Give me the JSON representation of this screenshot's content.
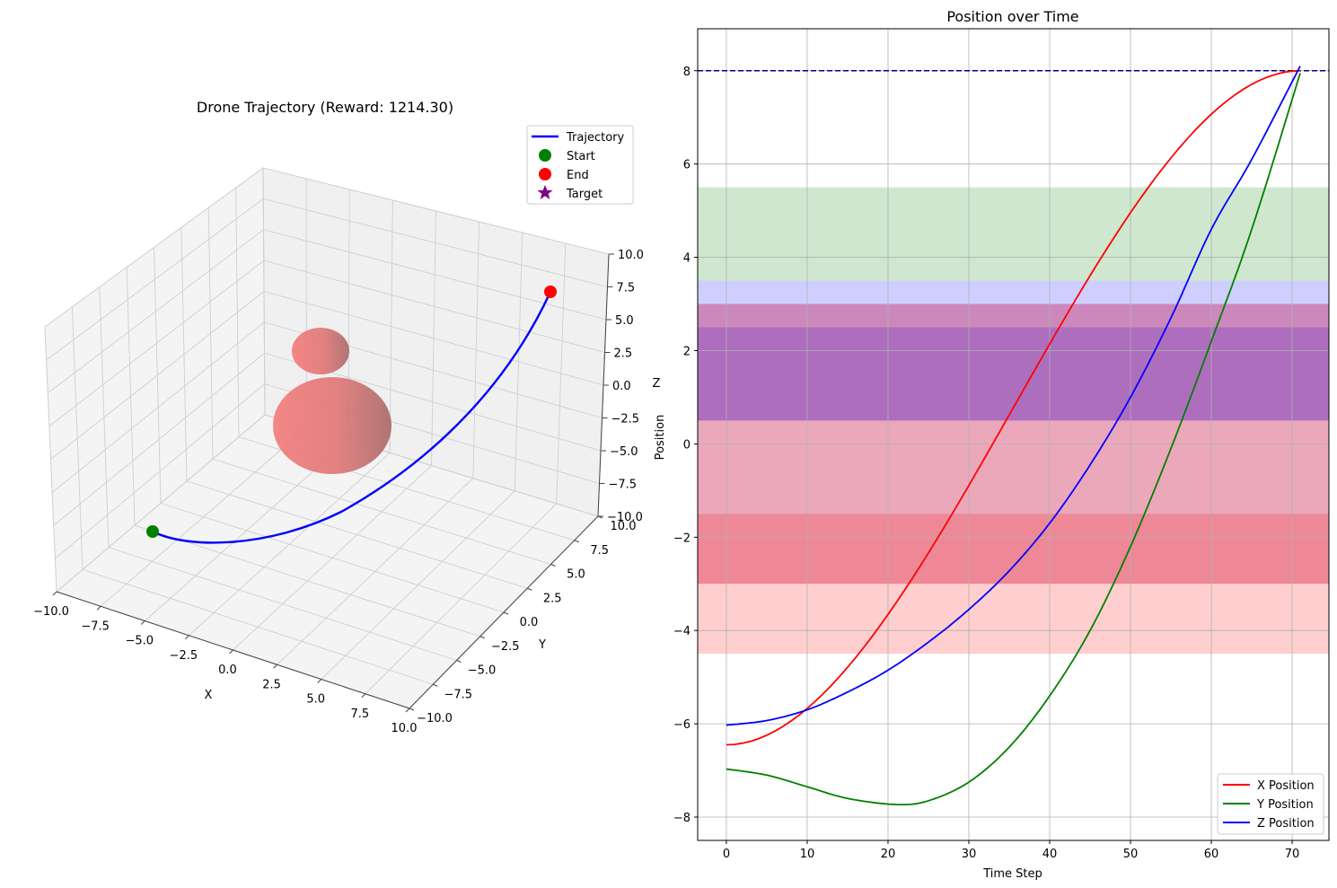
{
  "chart_data": [
    {
      "type": "line3d",
      "title": "Drone Trajectory (Reward: 1214.30)",
      "xlabel": "X",
      "ylabel": "Y",
      "zlabel": "Z",
      "xlim": [
        -10,
        10
      ],
      "ylim": [
        -10,
        10
      ],
      "zlim": [
        -10,
        10
      ],
      "x_ticks": [
        "−10.0",
        "−7.5",
        "−5.0",
        "−2.5",
        "0.0",
        "2.5",
        "5.0",
        "7.5",
        "10.0"
      ],
      "y_ticks": [
        "−10.0",
        "−7.5",
        "−5.0",
        "−2.5",
        "0.0",
        "2.5",
        "5.0",
        "7.5",
        "10.0"
      ],
      "z_ticks": [
        "−10.0",
        "−7.5",
        "−5.0",
        "−2.5",
        "0.0",
        "2.5",
        "5.0",
        "7.5",
        "10.0"
      ],
      "legend": {
        "position": "top-right",
        "entries": [
          {
            "label": "Trajectory",
            "marker": "line",
            "color": "#0000ff"
          },
          {
            "label": "Start",
            "marker": "circle",
            "color": "#008000"
          },
          {
            "label": "End",
            "marker": "circle",
            "color": "#ff0000"
          },
          {
            "label": "Target",
            "marker": "star",
            "color": "#800080"
          }
        ]
      },
      "trajectory": {
        "color": "#0000ff",
        "start": [
          -6.4,
          -7.0,
          -6.0
        ],
        "end": [
          8.0,
          8.0,
          8.1
        ],
        "waypoints": [
          [
            -6.4,
            -7.0,
            -6.0
          ],
          [
            -4.0,
            -7.7,
            -5.0
          ],
          [
            0.0,
            -6.0,
            -3.0
          ],
          [
            4.0,
            -2.0,
            0.0
          ],
          [
            6.5,
            2.5,
            3.5
          ],
          [
            8.0,
            8.0,
            8.1
          ]
        ]
      },
      "obstacles_color": "#f08080"
    },
    {
      "type": "line",
      "title": "Position over Time",
      "xlabel": "Time Step",
      "ylabel": "Position",
      "xlim": [
        -3.55,
        74.55
      ],
      "ylim": [
        -8.5,
        8.9
      ],
      "x_ticks": [
        0,
        10,
        20,
        30,
        40,
        50,
        60,
        70
      ],
      "y_ticks": [
        -8,
        -6,
        -4,
        -2,
        0,
        2,
        4,
        6,
        8
      ],
      "y_tick_labels": [
        "−8",
        "−6",
        "−4",
        "−2",
        "0",
        "2",
        "4",
        "6",
        "8"
      ],
      "grid": true,
      "legend_position": "lower-right",
      "series": [
        {
          "name": "X Position",
          "color": "#ff0000",
          "start": -6.45,
          "end": 8.0,
          "type": "smoothstep"
        },
        {
          "name": "Y Position",
          "color": "#008000",
          "points": [
            [
              0,
              -6.97
            ],
            [
              5,
              -7.1
            ],
            [
              10,
              -7.35
            ],
            [
              15,
              -7.6
            ],
            [
              21,
              -7.73
            ],
            [
              25,
              -7.65
            ],
            [
              30,
              -7.25
            ],
            [
              35,
              -6.5
            ],
            [
              40,
              -5.4
            ],
            [
              45,
              -4.0
            ],
            [
              50,
              -2.2
            ],
            [
              55,
              -0.1
            ],
            [
              60,
              2.2
            ],
            [
              65,
              4.6
            ],
            [
              71,
              7.95
            ]
          ]
        },
        {
          "name": "Z Position",
          "color": "#0000ff",
          "points": [
            [
              0,
              -6.03
            ],
            [
              5,
              -5.93
            ],
            [
              10,
              -5.7
            ],
            [
              15,
              -5.32
            ],
            [
              20,
              -4.85
            ],
            [
              25,
              -4.25
            ],
            [
              30,
              -3.55
            ],
            [
              35,
              -2.72
            ],
            [
              40,
              -1.7
            ],
            [
              45,
              -0.45
            ],
            [
              50,
              1.0
            ],
            [
              55,
              2.7
            ],
            [
              60,
              4.6
            ],
            [
              65,
              6.1
            ],
            [
              71,
              8.1
            ]
          ]
        }
      ],
      "target_line": {
        "value": 8.0,
        "color": "#00008b",
        "style": "dashed"
      },
      "bands": [
        {
          "y0": 3.5,
          "y1": 5.5,
          "color": "#008000",
          "alpha": 0.19
        },
        {
          "y0": 0.5,
          "y1": 3.5,
          "color": "#0000ff",
          "alpha": 0.19
        },
        {
          "y0": -3.0,
          "y1": 3.0,
          "color": "#800080",
          "alpha": 0.19
        },
        {
          "y0": 0.5,
          "y1": 2.5,
          "color": "#0000ff",
          "alpha": 0.19
        },
        {
          "y0": -3.0,
          "y1": -1.5,
          "color": "#ff0000",
          "alpha": 0.19
        },
        {
          "y0": -4.5,
          "y1": 3.0,
          "color": "#ff0000",
          "alpha": 0.19
        }
      ]
    }
  ]
}
